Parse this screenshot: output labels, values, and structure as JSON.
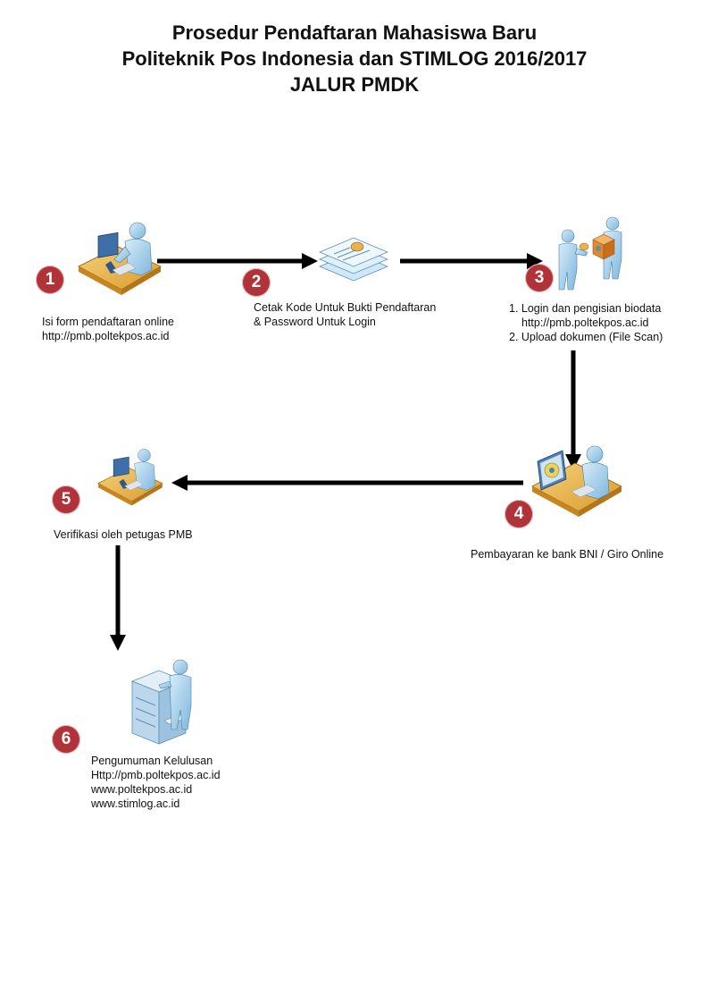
{
  "title": {
    "line1": "Prosedur Pendaftaran Mahasiswa Baru",
    "line2": "Politeknik Pos Indonesia dan STIMLOG 2016/2017",
    "line3": "JALUR PMDK"
  },
  "colors": {
    "badge": "#b0333a",
    "arrow": "#000000",
    "person_skin": "#a8d4ee",
    "desk": "#e9b24a",
    "monitor": "#4f80b8"
  },
  "steps": [
    {
      "number": "1",
      "icon": "person-at-computer-icon",
      "lines": [
        "Isi form pendaftaran online",
        "http://pmb.poltekpos.ac.id"
      ]
    },
    {
      "number": "2",
      "icon": "id-card-documents-icon",
      "lines": [
        "Cetak Kode Untuk Bukti Pendaftaran",
        "& Password Untuk Login"
      ]
    },
    {
      "number": "3",
      "icon": "people-exchanging-package-icon",
      "lines": [
        "1. Login dan pengisian biodata",
        "http://pmb.poltekpos.ac.id",
        "2. Upload dokumen (File Scan)"
      ]
    },
    {
      "number": "4",
      "icon": "person-online-payment-icon",
      "lines": [
        "Pembayaran ke bank BNI / Giro Online"
      ]
    },
    {
      "number": "5",
      "icon": "person-at-computer-icon",
      "lines": [
        "Verifikasi oleh petugas PMB"
      ]
    },
    {
      "number": "6",
      "icon": "person-at-printer-icon",
      "lines": [
        "Pengumuman Kelulusan",
        "Http://pmb.poltekpos.ac.id",
        "www.poltekpos.ac.id",
        "www.stimlog.ac.id"
      ]
    }
  ]
}
